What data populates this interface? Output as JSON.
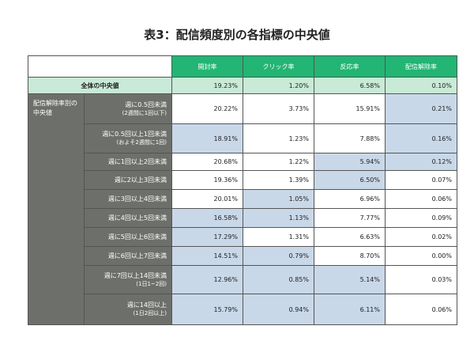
{
  "title": "表3：配信頻度別の各指標の中央値",
  "columns": [
    "開封率",
    "クリック率",
    "反応率",
    "配信解除率"
  ],
  "overall": {
    "label": "全体の中央値",
    "values": [
      "19.23%",
      "1.20%",
      "6.58%",
      "0.10%"
    ]
  },
  "group_label": "配信解除率別の中央値",
  "highlight_color": "#c9d8e8",
  "header_color": "#22b573",
  "rows": [
    {
      "label": "週に0.5回未満",
      "sub": "(2週間に1回以下)",
      "values": [
        "20.22%",
        "3.73%",
        "15.91%",
        "0.21%"
      ],
      "highlight": [
        false,
        false,
        false,
        true
      ]
    },
    {
      "label": "週に0.5回以上1回未満",
      "sub": "(およそ2週間に1回)",
      "values": [
        "18.91%",
        "1.23%",
        "7.88%",
        "0.16%"
      ],
      "highlight": [
        true,
        false,
        false,
        true
      ]
    },
    {
      "label": "週に1回以上2回未満",
      "sub": "",
      "values": [
        "20.68%",
        "1.22%",
        "5.94%",
        "0.12%"
      ],
      "highlight": [
        false,
        false,
        true,
        true
      ]
    },
    {
      "label": "週に2以上3回未満",
      "sub": "",
      "values": [
        "19.36%",
        "1.39%",
        "6.50%",
        "0.07%"
      ],
      "highlight": [
        false,
        false,
        true,
        false
      ]
    },
    {
      "label": "週に3回以上4回未満",
      "sub": "",
      "values": [
        "20.01%",
        "1.05%",
        "6.96%",
        "0.06%"
      ],
      "highlight": [
        false,
        true,
        false,
        false
      ]
    },
    {
      "label": "週に4回以上5回未満",
      "sub": "",
      "values": [
        "16.58%",
        "1.13%",
        "7.77%",
        "0.09%"
      ],
      "highlight": [
        true,
        true,
        false,
        false
      ]
    },
    {
      "label": "週に5回以上6回未満",
      "sub": "",
      "values": [
        "17.29%",
        "1.31%",
        "6.63%",
        "0.02%"
      ],
      "highlight": [
        true,
        false,
        false,
        false
      ]
    },
    {
      "label": "週に6回以上7回未満",
      "sub": "",
      "values": [
        "14.51%",
        "0.79%",
        "8.70%",
        "0.00%"
      ],
      "highlight": [
        true,
        true,
        false,
        false
      ]
    },
    {
      "label": "週に7回以上14回未満",
      "sub": "(1日1~2回)",
      "values": [
        "12.96%",
        "0.85%",
        "5.14%",
        "0.03%"
      ],
      "highlight": [
        true,
        true,
        true,
        false
      ]
    },
    {
      "label": "週に14回以上",
      "sub": "(1日2回以上)",
      "values": [
        "15.79%",
        "0.94%",
        "6.11%",
        "0.06%"
      ],
      "highlight": [
        true,
        true,
        true,
        false
      ]
    }
  ]
}
